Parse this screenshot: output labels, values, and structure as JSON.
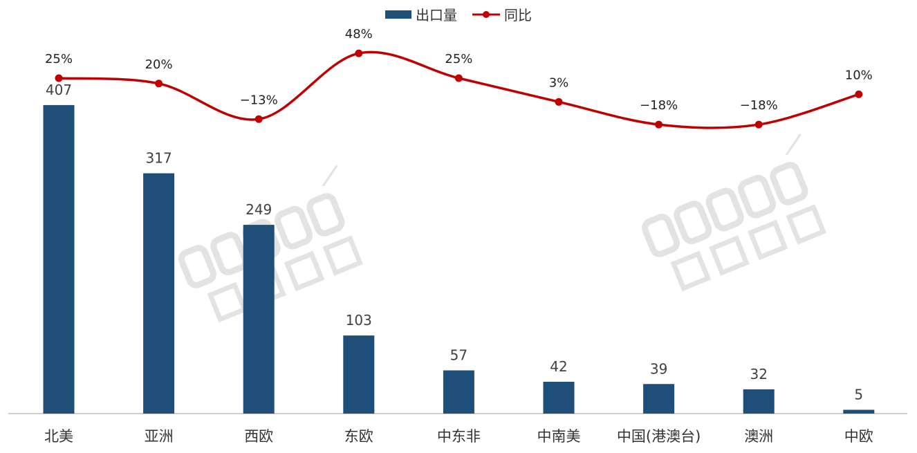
{
  "chart_data": {
    "type": "bar+line",
    "categories": [
      "北美",
      "亚洲",
      "西欧",
      "东欧",
      "中东非",
      "中南美",
      "中国(港澳台)",
      "澳洲",
      "中欧"
    ],
    "series": [
      {
        "name": "出口量",
        "type": "bar",
        "color": "#1F4E79",
        "values": [
          407,
          317,
          249,
          103,
          57,
          42,
          39,
          32,
          5
        ]
      },
      {
        "name": "同比",
        "type": "line",
        "color": "#C00000",
        "unit": "%",
        "values": [
          25,
          20,
          -13,
          48,
          25,
          3,
          -18,
          -18,
          10
        ]
      }
    ],
    "legend_position": "top",
    "grid": false
  },
  "watermark": {
    "brand": "Runto",
    "name": "洛图科技"
  }
}
